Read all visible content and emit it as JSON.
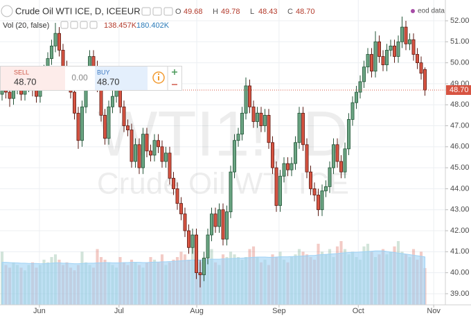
{
  "header": {
    "symbol": "Crude Oil WTI ICE, D, ICEEUR",
    "ohlc": [
      {
        "key": "O",
        "value": "49.68"
      },
      {
        "key": "H",
        "value": "49.78"
      },
      {
        "key": "L",
        "value": "48.43"
      },
      {
        "key": "C",
        "value": "48.70"
      }
    ],
    "volume_label": "Vol (20, false)",
    "volume_values": [
      "138.457K",
      "180.402K"
    ],
    "source": "eod data"
  },
  "trade_panel": {
    "sell_label": "SELL",
    "sell_price": "48.70",
    "spread": "0.00",
    "buy_label": "BUY",
    "buy_price": "48.70"
  },
  "watermark": [
    "WTI1!, D",
    "Crude Oil WTI ICE"
  ],
  "chart_data": {
    "type": "candlestick",
    "up_color": "#6ba583",
    "up_border": "#225437",
    "down_color": "#d75442",
    "down_border": "#5b1a13",
    "last_price_label": "48.70",
    "grid": true,
    "xlim": [
      -0.545,
      116.36
    ],
    "xticks": [
      {
        "value": 9.8,
        "label": "Jun"
      },
      {
        "value": 30.7,
        "label": "Jul"
      },
      {
        "value": 51.1,
        "label": "Aug"
      },
      {
        "value": 72.7,
        "label": "Sep"
      },
      {
        "value": 93.5,
        "label": "Oct"
      },
      {
        "value": 113.3,
        "label": "Nov"
      }
    ],
    "ylim": [
      38.47,
      52.99
    ],
    "yticks": [
      {
        "value": 39,
        "label": "39.00"
      },
      {
        "value": 40,
        "label": "40.00"
      },
      {
        "value": 41,
        "label": "41.00"
      },
      {
        "value": 42,
        "label": "42.00"
      },
      {
        "value": 43,
        "label": "43.00"
      },
      {
        "value": 44,
        "label": "44.00"
      },
      {
        "value": 45,
        "label": "45.00"
      },
      {
        "value": 46,
        "label": "46.00"
      },
      {
        "value": 47,
        "label": "47.00"
      },
      {
        "value": 48,
        "label": "48.00"
      },
      {
        "value": 49,
        "label": "49.00"
      },
      {
        "value": 50,
        "label": "50.00"
      },
      {
        "value": 51,
        "label": "51.00"
      },
      {
        "value": 52,
        "label": "52.00"
      }
    ],
    "candles": [
      [
        48.5,
        49.2,
        48.2,
        48.9
      ],
      [
        48.9,
        49.2,
        48.3,
        48.6
      ],
      [
        48.6,
        48.9,
        47.9,
        48.3
      ],
      [
        48.3,
        49.1,
        48.0,
        48.8
      ],
      [
        48.8,
        49.3,
        48.5,
        49.0
      ],
      [
        49.0,
        49.3,
        48.2,
        48.5
      ],
      [
        48.5,
        49.2,
        48.2,
        48.9
      ],
      [
        48.9,
        49.5,
        48.6,
        49.2
      ],
      [
        49.2,
        49.5,
        48.4,
        48.7
      ],
      [
        48.7,
        49.0,
        48.1,
        48.4
      ],
      [
        48.4,
        49.4,
        48.1,
        49.1
      ],
      [
        49.1,
        49.9,
        48.8,
        49.6
      ],
      [
        49.6,
        50.5,
        49.3,
        50.2
      ],
      [
        50.2,
        51.1,
        49.9,
        50.8
      ],
      [
        50.8,
        51.9,
        50.5,
        51.4
      ],
      [
        51.4,
        51.7,
        50.3,
        50.6
      ],
      [
        50.6,
        50.9,
        49.5,
        49.8
      ],
      [
        49.8,
        50.1,
        48.7,
        49.0
      ],
      [
        49.0,
        49.3,
        48.3,
        48.6
      ],
      [
        48.6,
        48.9,
        47.3,
        47.6
      ],
      [
        47.6,
        47.9,
        45.9,
        46.3
      ],
      [
        46.3,
        48.2,
        46.0,
        47.9
      ],
      [
        47.9,
        49.5,
        47.6,
        49.2
      ],
      [
        49.2,
        50.6,
        48.9,
        50.3
      ],
      [
        50.3,
        50.6,
        49.5,
        49.8
      ],
      [
        49.8,
        50.1,
        48.6,
        48.9
      ],
      [
        48.9,
        49.2,
        47.2,
        47.5
      ],
      [
        47.5,
        47.8,
        46.1,
        46.4
      ],
      [
        46.4,
        48.2,
        46.1,
        47.9
      ],
      [
        47.9,
        48.7,
        47.6,
        48.4
      ],
      [
        48.4,
        49.1,
        48.1,
        48.8
      ],
      [
        48.8,
        49.1,
        47.6,
        47.9
      ],
      [
        47.9,
        48.2,
        46.7,
        47.0
      ],
      [
        47.0,
        47.3,
        46.5,
        46.8
      ],
      [
        46.8,
        47.1,
        45.0,
        45.3
      ],
      [
        45.3,
        46.4,
        45.0,
        46.1
      ],
      [
        46.1,
        46.4,
        44.7,
        45.0
      ],
      [
        45.0,
        46.9,
        44.7,
        46.6
      ],
      [
        46.6,
        46.9,
        45.5,
        45.8
      ],
      [
        45.8,
        46.1,
        45.3,
        45.6
      ],
      [
        45.6,
        46.6,
        45.3,
        46.3
      ],
      [
        46.3,
        46.6,
        45.7,
        46.0
      ],
      [
        46.0,
        46.3,
        45.0,
        45.3
      ],
      [
        45.3,
        46.0,
        45.0,
        45.7
      ],
      [
        45.7,
        46.0,
        44.2,
        44.5
      ],
      [
        44.5,
        44.8,
        43.7,
        44.0
      ],
      [
        44.0,
        44.3,
        43.0,
        43.3
      ],
      [
        43.3,
        43.6,
        42.5,
        42.8
      ],
      [
        42.8,
        43.1,
        41.7,
        42.0
      ],
      [
        42.0,
        42.3,
        40.9,
        41.2
      ],
      [
        41.2,
        42.1,
        40.9,
        41.8
      ],
      [
        41.8,
        42.1,
        39.7,
        40.0
      ],
      [
        40.0,
        40.6,
        39.3,
        39.9
      ],
      [
        39.9,
        41.0,
        39.6,
        40.7
      ],
      [
        40.7,
        42.1,
        40.4,
        41.8
      ],
      [
        41.8,
        43.1,
        41.5,
        42.8
      ],
      [
        42.8,
        43.1,
        41.9,
        42.2
      ],
      [
        42.2,
        43.3,
        41.9,
        43.0
      ],
      [
        43.0,
        43.3,
        41.3,
        41.6
      ],
      [
        41.6,
        43.2,
        41.3,
        42.9
      ],
      [
        42.9,
        45.1,
        42.6,
        44.8
      ],
      [
        44.8,
        46.6,
        44.5,
        46.3
      ],
      [
        46.3,
        46.9,
        46.0,
        46.6
      ],
      [
        46.6,
        47.9,
        46.3,
        47.6
      ],
      [
        47.6,
        49.3,
        47.3,
        48.9
      ],
      [
        48.9,
        49.2,
        47.6,
        47.9
      ],
      [
        47.9,
        48.2,
        46.9,
        47.2
      ],
      [
        47.2,
        47.9,
        46.9,
        47.6
      ],
      [
        47.6,
        47.9,
        46.7,
        47.0
      ],
      [
        47.0,
        47.8,
        46.7,
        47.5
      ],
      [
        47.5,
        47.8,
        45.9,
        46.2
      ],
      [
        46.2,
        46.5,
        44.7,
        45.0
      ],
      [
        45.0,
        45.3,
        42.9,
        43.2
      ],
      [
        43.2,
        44.9,
        42.9,
        44.6
      ],
      [
        44.6,
        45.5,
        44.3,
        45.2
      ],
      [
        45.2,
        45.5,
        44.6,
        44.9
      ],
      [
        44.9,
        45.5,
        44.6,
        45.2
      ],
      [
        45.2,
        46.5,
        44.9,
        46.2
      ],
      [
        46.2,
        47.9,
        45.9,
        47.6
      ],
      [
        47.6,
        47.9,
        45.8,
        46.1
      ],
      [
        46.1,
        46.4,
        44.5,
        44.8
      ],
      [
        44.8,
        45.1,
        43.7,
        44.0
      ],
      [
        44.0,
        44.3,
        43.4,
        43.7
      ],
      [
        43.7,
        44.0,
        42.7,
        43.0
      ],
      [
        43.0,
        44.2,
        42.7,
        43.9
      ],
      [
        43.9,
        44.4,
        43.6,
        44.1
      ],
      [
        44.1,
        45.3,
        43.8,
        45.0
      ],
      [
        45.0,
        46.4,
        44.7,
        46.1
      ],
      [
        46.1,
        46.4,
        45.0,
        45.3
      ],
      [
        45.3,
        45.6,
        44.5,
        44.8
      ],
      [
        44.8,
        46.2,
        44.5,
        45.9
      ],
      [
        45.9,
        47.6,
        45.6,
        47.3
      ],
      [
        47.3,
        48.4,
        47.0,
        48.1
      ],
      [
        48.1,
        48.9,
        47.8,
        48.6
      ],
      [
        48.6,
        49.4,
        48.3,
        49.1
      ],
      [
        49.1,
        50.1,
        48.8,
        49.8
      ],
      [
        49.8,
        50.7,
        49.5,
        50.4
      ],
      [
        50.4,
        50.7,
        49.3,
        49.6
      ],
      [
        49.6,
        51.5,
        49.3,
        51.0
      ],
      [
        51.0,
        51.3,
        50.0,
        50.3
      ],
      [
        50.3,
        50.6,
        49.6,
        49.9
      ],
      [
        49.9,
        50.9,
        49.6,
        50.6
      ],
      [
        50.6,
        51.1,
        50.3,
        50.8
      ],
      [
        50.8,
        51.1,
        50.0,
        50.3
      ],
      [
        50.3,
        51.3,
        50.0,
        51.0
      ],
      [
        51.0,
        52.2,
        50.7,
        51.7
      ],
      [
        51.7,
        52.0,
        50.6,
        50.9
      ],
      [
        50.9,
        51.4,
        50.6,
        51.1
      ],
      [
        51.1,
        51.4,
        50.1,
        50.4
      ],
      [
        50.4,
        50.7,
        49.7,
        50.0
      ],
      [
        50.0,
        50.3,
        49.2,
        49.5
      ],
      [
        49.68,
        49.78,
        48.43,
        48.7
      ]
    ],
    "volume": [
      200,
      150,
      140,
      160,
      150,
      140,
      130,
      150,
      160,
      140,
      150,
      170,
      160,
      180,
      190,
      170,
      150,
      160,
      140,
      130,
      150,
      200,
      160,
      150,
      140,
      210,
      180,
      170,
      160,
      150,
      140,
      180,
      160,
      150,
      170,
      160,
      150,
      140,
      160,
      180,
      170,
      160,
      190,
      150,
      160,
      170,
      180,
      200,
      190,
      170,
      220,
      180,
      160,
      150,
      170,
      210,
      160,
      150,
      190,
      180,
      200,
      190,
      180,
      170,
      180,
      210,
      220,
      180,
      160,
      170,
      150,
      190,
      180,
      200,
      170,
      160,
      180,
      190,
      210,
      200,
      190,
      180,
      170,
      230,
      200,
      190,
      210,
      180,
      220,
      240,
      210,
      190,
      200,
      180,
      170,
      220,
      230,
      200,
      180,
      190,
      210,
      190,
      200,
      220,
      240,
      200,
      190,
      180,
      210,
      170,
      200,
      138.457
    ],
    "volume_ma": [
      160,
      160,
      159,
      158,
      158,
      157,
      157,
      156,
      156,
      156,
      155,
      155,
      156,
      157,
      158,
      158,
      157,
      157,
      156,
      155,
      155,
      156,
      157,
      157,
      157,
      158,
      158,
      159,
      159,
      158,
      158,
      158,
      159,
      159,
      160,
      160,
      160,
      159,
      159,
      160,
      161,
      161,
      162,
      162,
      163,
      164,
      165,
      166,
      167,
      168,
      169,
      169,
      169,
      170,
      171,
      172,
      172,
      172,
      173,
      173,
      174,
      175,
      175,
      176,
      177,
      178,
      179,
      180,
      180,
      180,
      179,
      179,
      180,
      181,
      181,
      181,
      182,
      182,
      183,
      184,
      185,
      186,
      186,
      188,
      189,
      190,
      191,
      192,
      193,
      195,
      196,
      197,
      198,
      198,
      199,
      200,
      201,
      202,
      203,
      203,
      203,
      201,
      199,
      197,
      195,
      193,
      191,
      189,
      187,
      185,
      183,
      180.402
    ],
    "volume_ma_color": "#9fd2f5"
  }
}
